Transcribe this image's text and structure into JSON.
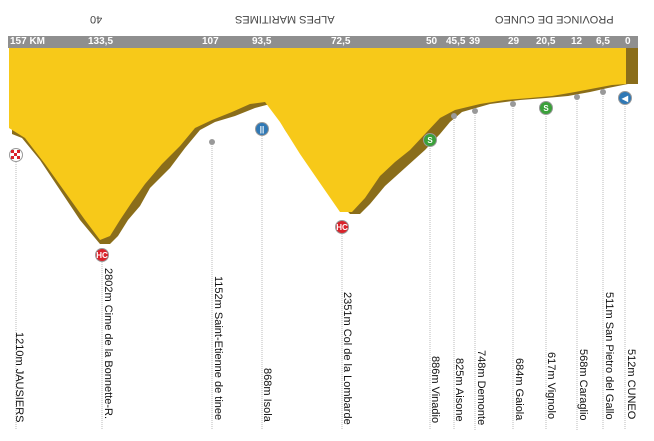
{
  "header": {
    "region_left": "ALPES MARITIMES",
    "region_right": "PROVINCE DE CUNEO",
    "left_marker": "40"
  },
  "km_markers": [
    "157 KM",
    "133,5",
    "107",
    "93,5",
    "72,5",
    "50",
    "45,5",
    "39",
    "29",
    "20,5",
    "12",
    "6,5",
    "0"
  ],
  "places": [
    {
      "label": "1210m JAUSIERS",
      "icon": "finish-checkered-icon"
    },
    {
      "label": "2802m Cime de la Bonnette-R.",
      "icon": "hors-categorie-climb-icon"
    },
    {
      "label": "1152m Saint-Etienne de tinee",
      "icon": "point-icon"
    },
    {
      "label": "868m Isola",
      "icon": "sprint-icon"
    },
    {
      "label": "2351m Col de la Lombarde",
      "icon": "hors-categorie-climb-icon"
    },
    {
      "label": "886m Vinadio",
      "icon": "green-jersey-icon"
    },
    {
      "label": "825m Aisone",
      "icon": "point-icon"
    },
    {
      "label": "748m Demonte",
      "icon": "point-icon"
    },
    {
      "label": "684m Gaiola",
      "icon": "point-icon"
    },
    {
      "label": "617m Vignolo",
      "icon": "green-jersey-icon"
    },
    {
      "label": "568m Caraglio",
      "icon": "point-icon"
    },
    {
      "label": "511m San Pietro del Gallo",
      "icon": "point-icon"
    },
    {
      "label": "512m CUNEO",
      "icon": "start-arrow-icon"
    }
  ],
  "colors": {
    "profile_fill": "#f7c919",
    "profile_shadow": "#8a6d1a",
    "km_bar": "#8f8f8f",
    "leader_line": "#bbbbbb",
    "hc_badge": "#d9232b",
    "sprint_badge": "#2f78b5",
    "green_badge": "#3aa03a"
  }
}
